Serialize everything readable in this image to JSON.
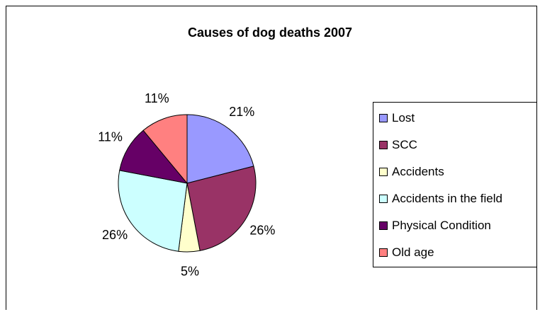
{
  "chart_data": {
    "type": "pie",
    "title": "Causes of dog deaths 2007",
    "categories": [
      "Lost",
      "SCC",
      "Accidents",
      "Accidents in the field",
      "Physical Condition",
      "Old age"
    ],
    "values": [
      21,
      26,
      5,
      26,
      11,
      11
    ],
    "labels": [
      "21%",
      "26%",
      "5%",
      "26%",
      "11%",
      "11%"
    ],
    "colors": [
      "#9999FF",
      "#993366",
      "#FFFFCC",
      "#CCFFFF",
      "#660066",
      "#FF8080"
    ],
    "legend_position": "right",
    "start_angle": "12 o'clock",
    "direction": "clockwise"
  }
}
